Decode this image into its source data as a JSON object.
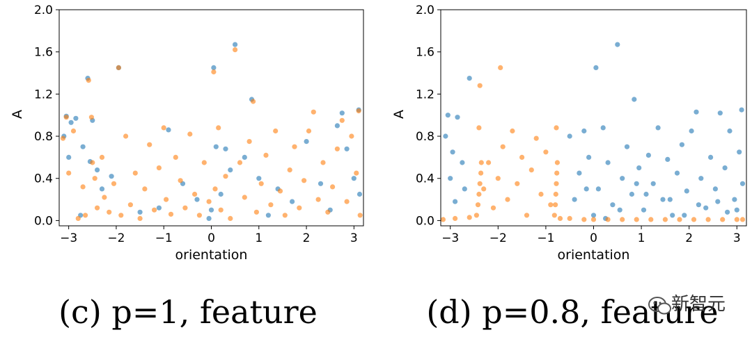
{
  "colors": {
    "blue": "#1f77b4",
    "orange": "#ff7f0e"
  },
  "chart_data": [
    {
      "type": "scatter",
      "caption": "(c) p=1, feature",
      "xlabel": "orientation",
      "ylabel": "A",
      "xlim": [
        -3.2,
        3.2
      ],
      "ylim": [
        -0.05,
        2.0
      ],
      "xticks": [
        -3,
        -2,
        -1,
        0,
        1,
        2,
        3
      ],
      "xtick_labels": [
        "−3",
        "−2",
        "−1",
        "0",
        "1",
        "2",
        "3"
      ],
      "yticks": [
        0.0,
        0.4,
        0.8,
        1.2,
        1.6,
        2.0
      ],
      "ytick_labels": [
        "0.0",
        "0.4",
        "0.8",
        "1.2",
        "1.6",
        "2.0"
      ],
      "grid": false,
      "series": [
        {
          "color": "blue",
          "points": [
            [
              -3.1,
              0.8
            ],
            [
              -3.05,
              0.99
            ],
            [
              -2.95,
              0.93
            ],
            [
              -2.85,
              0.97
            ],
            [
              -3.0,
              0.6
            ],
            [
              -2.7,
              0.7
            ],
            [
              -2.6,
              1.35
            ],
            [
              -2.55,
              0.56
            ],
            [
              -2.5,
              0.95
            ],
            [
              -2.4,
              0.48
            ],
            [
              -2.3,
              0.3
            ],
            [
              -2.1,
              0.42
            ],
            [
              -1.95,
              1.45
            ],
            [
              -1.5,
              0.08
            ],
            [
              -1.1,
              0.12
            ],
            [
              -0.9,
              0.86
            ],
            [
              -0.6,
              0.35
            ],
            [
              -0.3,
              0.2
            ],
            [
              0.0,
              0.1
            ],
            [
              0.05,
              1.45
            ],
            [
              0.1,
              0.7
            ],
            [
              0.2,
              0.25
            ],
            [
              0.3,
              0.68
            ],
            [
              0.5,
              1.67
            ],
            [
              0.7,
              0.6
            ],
            [
              0.85,
              1.15
            ],
            [
              1.0,
              0.4
            ],
            [
              1.2,
              0.05
            ],
            [
              1.4,
              0.3
            ],
            [
              1.7,
              0.18
            ],
            [
              2.0,
              0.75
            ],
            [
              2.3,
              0.35
            ],
            [
              2.5,
              0.1
            ],
            [
              2.65,
              0.9
            ],
            [
              2.75,
              1.02
            ],
            [
              2.85,
              0.68
            ],
            [
              3.0,
              0.4
            ],
            [
              3.1,
              1.05
            ],
            [
              3.12,
              0.25
            ],
            [
              -2.75,
              0.05
            ],
            [
              -0.05,
              0.02
            ],
            [
              0.4,
              0.48
            ]
          ]
        },
        {
          "color": "orange",
          "points": [
            [
              -3.12,
              0.78
            ],
            [
              -3.05,
              0.98
            ],
            [
              -3.0,
              0.45
            ],
            [
              -2.9,
              0.85
            ],
            [
              -2.8,
              0.02
            ],
            [
              -2.7,
              0.32
            ],
            [
              -2.65,
              0.05
            ],
            [
              -2.58,
              1.33
            ],
            [
              -2.52,
              0.98
            ],
            [
              -2.5,
              0.55
            ],
            [
              -2.45,
              0.4
            ],
            [
              -2.4,
              0.12
            ],
            [
              -2.3,
              0.6
            ],
            [
              -2.25,
              0.22
            ],
            [
              -2.15,
              0.08
            ],
            [
              -2.05,
              0.35
            ],
            [
              -1.95,
              1.45
            ],
            [
              -1.9,
              0.05
            ],
            [
              -1.8,
              0.8
            ],
            [
              -1.7,
              0.15
            ],
            [
              -1.6,
              0.45
            ],
            [
              -1.5,
              0.02
            ],
            [
              -1.4,
              0.3
            ],
            [
              -1.3,
              0.72
            ],
            [
              -1.2,
              0.1
            ],
            [
              -1.1,
              0.5
            ],
            [
              -1.0,
              0.88
            ],
            [
              -0.95,
              0.2
            ],
            [
              -0.85,
              0.06
            ],
            [
              -0.75,
              0.6
            ],
            [
              -0.65,
              0.38
            ],
            [
              -0.55,
              0.12
            ],
            [
              -0.45,
              0.82
            ],
            [
              -0.35,
              0.25
            ],
            [
              -0.25,
              0.05
            ],
            [
              -0.15,
              0.55
            ],
            [
              -0.05,
              0.18
            ],
            [
              0.05,
              1.41
            ],
            [
              0.08,
              0.3
            ],
            [
              0.15,
              0.88
            ],
            [
              0.2,
              0.1
            ],
            [
              0.3,
              0.42
            ],
            [
              0.4,
              0.02
            ],
            [
              0.5,
              1.62
            ],
            [
              0.6,
              0.55
            ],
            [
              0.7,
              0.22
            ],
            [
              0.8,
              0.75
            ],
            [
              0.88,
              1.13
            ],
            [
              0.95,
              0.08
            ],
            [
              1.05,
              0.35
            ],
            [
              1.15,
              0.62
            ],
            [
              1.25,
              0.15
            ],
            [
              1.35,
              0.85
            ],
            [
              1.45,
              0.28
            ],
            [
              1.55,
              0.05
            ],
            [
              1.65,
              0.48
            ],
            [
              1.75,
              0.7
            ],
            [
              1.85,
              0.12
            ],
            [
              1.95,
              0.38
            ],
            [
              2.05,
              0.85
            ],
            [
              2.15,
              1.03
            ],
            [
              2.25,
              0.2
            ],
            [
              2.35,
              0.55
            ],
            [
              2.45,
              0.08
            ],
            [
              2.55,
              0.32
            ],
            [
              2.65,
              0.68
            ],
            [
              2.75,
              0.95
            ],
            [
              2.85,
              0.18
            ],
            [
              2.95,
              0.8
            ],
            [
              3.05,
              0.45
            ],
            [
              3.1,
              1.04
            ],
            [
              3.13,
              0.05
            ]
          ]
        }
      ]
    },
    {
      "type": "scatter",
      "caption": "(d) p=0.8, feature",
      "xlabel": "orientation",
      "ylabel": "A",
      "xlim": [
        -3.2,
        3.2
      ],
      "ylim": [
        -0.05,
        2.0
      ],
      "xticks": [
        -3,
        -2,
        -1,
        0,
        1,
        2,
        3
      ],
      "xtick_labels": [
        "−3",
        "−2",
        "−1",
        "0",
        "1",
        "2",
        "3"
      ],
      "yticks": [
        0.0,
        0.4,
        0.8,
        1.2,
        1.6,
        2.0
      ],
      "ytick_labels": [
        "0.0",
        "0.4",
        "0.8",
        "1.2",
        "1.6",
        "2.0"
      ],
      "grid": false,
      "series": [
        {
          "color": "blue",
          "points": [
            [
              -3.1,
              0.8
            ],
            [
              -3.05,
              1.0
            ],
            [
              -2.95,
              0.65
            ],
            [
              -2.85,
              0.98
            ],
            [
              -3.0,
              0.4
            ],
            [
              -2.9,
              0.18
            ],
            [
              -2.75,
              0.55
            ],
            [
              -2.6,
              1.35
            ],
            [
              -2.7,
              0.3
            ],
            [
              -0.5,
              0.8
            ],
            [
              -0.3,
              0.45
            ],
            [
              -0.2,
              0.85
            ],
            [
              -0.1,
              0.6
            ],
            [
              0.05,
              1.45
            ],
            [
              0.1,
              0.3
            ],
            [
              0.2,
              0.88
            ],
            [
              0.3,
              0.55
            ],
            [
              0.4,
              0.15
            ],
            [
              0.5,
              1.67
            ],
            [
              0.6,
              0.4
            ],
            [
              0.7,
              0.7
            ],
            [
              0.8,
              0.25
            ],
            [
              0.85,
              1.15
            ],
            [
              0.95,
              0.5
            ],
            [
              1.05,
              0.1
            ],
            [
              1.15,
              0.62
            ],
            [
              1.25,
              0.35
            ],
            [
              1.35,
              0.88
            ],
            [
              1.45,
              0.2
            ],
            [
              1.55,
              0.58
            ],
            [
              1.65,
              0.05
            ],
            [
              1.75,
              0.45
            ],
            [
              1.85,
              0.72
            ],
            [
              1.95,
              0.28
            ],
            [
              2.05,
              0.85
            ],
            [
              2.15,
              1.03
            ],
            [
              2.25,
              0.4
            ],
            [
              2.35,
              0.12
            ],
            [
              2.45,
              0.6
            ],
            [
              2.55,
              0.3
            ],
            [
              2.65,
              1.02
            ],
            [
              2.75,
              0.5
            ],
            [
              2.85,
              0.85
            ],
            [
              2.95,
              0.2
            ],
            [
              3.05,
              0.65
            ],
            [
              3.1,
              1.05
            ],
            [
              3.12,
              0.35
            ],
            [
              -0.4,
              0.2
            ],
            [
              0.0,
              0.05
            ],
            [
              0.25,
              0.02
            ],
            [
              0.9,
              0.35
            ],
            [
              1.6,
              0.2
            ],
            [
              2.2,
              0.15
            ],
            [
              2.8,
              0.08
            ],
            [
              3.0,
              0.1
            ],
            [
              -0.15,
              0.3
            ],
            [
              0.55,
              0.1
            ],
            [
              1.1,
              0.25
            ],
            [
              1.9,
              0.05
            ],
            [
              2.6,
              0.18
            ]
          ]
        },
        {
          "color": "orange",
          "points": [
            [
              -3.15,
              0.01
            ],
            [
              -2.9,
              0.02
            ],
            [
              -2.6,
              0.03
            ],
            [
              -2.45,
              0.05
            ],
            [
              -2.42,
              0.15
            ],
            [
              -2.4,
              0.25
            ],
            [
              -2.38,
              0.35
            ],
            [
              -2.36,
              0.45
            ],
            [
              -2.35,
              0.55
            ],
            [
              -2.4,
              0.88
            ],
            [
              -2.38,
              1.28
            ],
            [
              -2.3,
              0.3
            ],
            [
              -2.2,
              0.55
            ],
            [
              -2.1,
              0.12
            ],
            [
              -2.0,
              0.4
            ],
            [
              -1.95,
              1.45
            ],
            [
              -1.9,
              0.7
            ],
            [
              -1.8,
              0.2
            ],
            [
              -1.7,
              0.85
            ],
            [
              -1.6,
              0.35
            ],
            [
              -1.5,
              0.6
            ],
            [
              -1.4,
              0.05
            ],
            [
              -1.3,
              0.48
            ],
            [
              -1.2,
              0.78
            ],
            [
              -1.1,
              0.25
            ],
            [
              -1.0,
              0.65
            ],
            [
              -0.9,
              0.15
            ],
            [
              -0.82,
              0.05
            ],
            [
              -0.8,
              0.15
            ],
            [
              -0.79,
              0.25
            ],
            [
              -0.78,
              0.35
            ],
            [
              -0.77,
              0.45
            ],
            [
              -0.76,
              0.55
            ],
            [
              -0.78,
              0.88
            ],
            [
              -0.7,
              0.02
            ],
            [
              -0.5,
              0.02
            ],
            [
              -0.2,
              0.01
            ],
            [
              0.0,
              0.01
            ],
            [
              0.3,
              0.01
            ],
            [
              0.6,
              0.01
            ],
            [
              0.9,
              0.01
            ],
            [
              1.2,
              0.01
            ],
            [
              1.5,
              0.01
            ],
            [
              1.8,
              0.01
            ],
            [
              2.1,
              0.01
            ],
            [
              2.4,
              0.01
            ],
            [
              2.7,
              0.01
            ],
            [
              3.0,
              0.01
            ],
            [
              3.12,
              0.01
            ]
          ]
        }
      ]
    }
  ],
  "watermark": {
    "icon": "wechat-icon",
    "text": "新智元"
  }
}
